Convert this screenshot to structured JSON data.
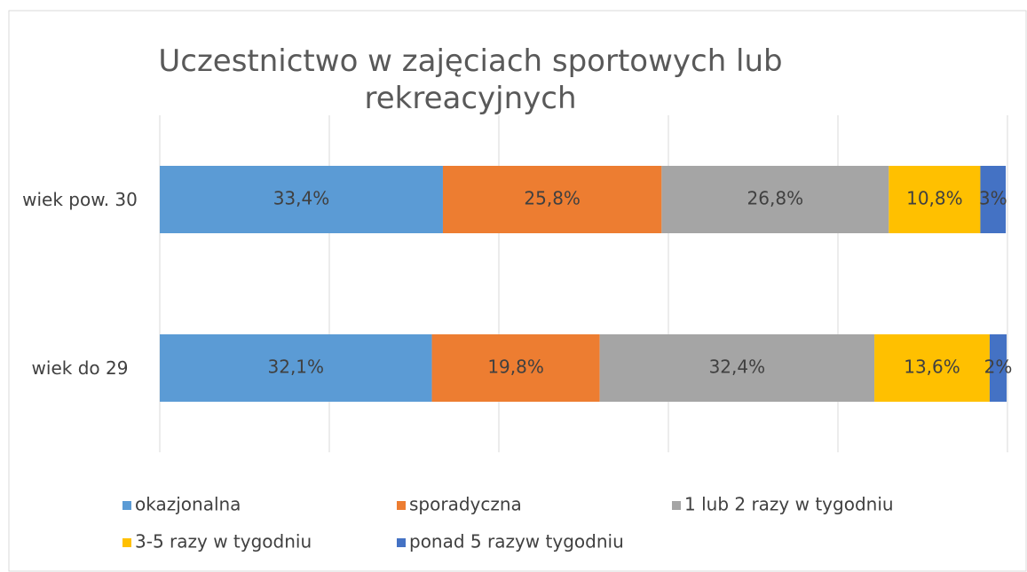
{
  "chart_data": {
    "type": "stacked_bar_horizontal",
    "title": "Uczestnictwo w zajęciach sportowych lub rekreacyjnych",
    "categories": [
      "wiek pow. 30",
      "wiek do 29"
    ],
    "series": [
      {
        "name": "okazjonalna",
        "color": "#5b9bd5",
        "values": [
          33.4,
          32.1
        ],
        "value_labels": [
          "33,4%",
          "32,1%"
        ]
      },
      {
        "name": "sporadyczna",
        "color": "#ed7d31",
        "values": [
          25.8,
          19.8
        ],
        "value_labels": [
          "25,8%",
          "19,8%"
        ]
      },
      {
        "name": "1 lub 2 razy w tygodniu",
        "color": "#a5a5a5",
        "values": [
          26.8,
          32.4
        ],
        "value_labels": [
          "26,8%",
          "32,4%"
        ]
      },
      {
        "name": "3-5 razy w tygodniu",
        "color": "#ffc000",
        "values": [
          10.8,
          13.6
        ],
        "value_labels": [
          "10,8%",
          "13,6%"
        ]
      },
      {
        "name": "ponad 5 razyw tygodniu",
        "color": "#4472c4",
        "values": [
          3,
          2
        ],
        "value_labels": [
          "3%",
          "2%"
        ]
      }
    ],
    "xlim": [
      0,
      100
    ],
    "xticks": [
      0,
      20,
      40,
      60,
      80,
      100
    ],
    "show_tick_labels": false,
    "grid": true,
    "legend": "bottom"
  }
}
